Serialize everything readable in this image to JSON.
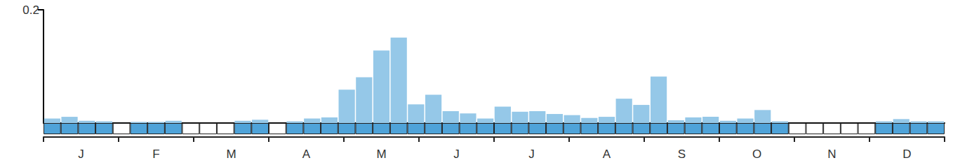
{
  "chart_data": {
    "type": "bar",
    "categories": [
      null,
      null,
      null,
      null,
      null,
      null,
      null,
      null,
      null,
      null,
      null,
      null,
      null,
      null,
      null,
      null,
      null,
      null,
      null,
      null,
      null,
      null,
      null,
      null,
      null,
      null,
      null,
      null,
      null,
      null,
      null,
      null,
      null,
      null,
      null,
      null,
      null,
      null,
      null,
      null,
      null,
      null,
      null,
      null,
      null,
      null,
      null,
      null,
      null,
      null,
      null,
      null
    ],
    "values": [
      0.008,
      0.011,
      0.004,
      0.003,
      0,
      0.002,
      0.002,
      0.004,
      0,
      0,
      0,
      0.004,
      0.006,
      0,
      0.003,
      0.008,
      0.01,
      0.059,
      0.081,
      0.128,
      0.151,
      0.033,
      0.05,
      0.021,
      0.017,
      0.008,
      0.029,
      0.02,
      0.021,
      0.016,
      0.014,
      0.009,
      0.011,
      0.043,
      0.032,
      0.082,
      0.005,
      0.01,
      0.011,
      0.004,
      0.008,
      0.023,
      0.003,
      0,
      0,
      0,
      0,
      0,
      0.003,
      0.007,
      0.003,
      0.003
    ],
    "present": [
      1,
      1,
      1,
      1,
      0,
      1,
      1,
      1,
      0,
      0,
      0,
      1,
      1,
      0,
      1,
      1,
      1,
      1,
      1,
      1,
      1,
      1,
      1,
      1,
      1,
      1,
      1,
      1,
      1,
      1,
      1,
      1,
      1,
      1,
      1,
      1,
      1,
      1,
      1,
      1,
      1,
      1,
      1,
      0,
      0,
      0,
      0,
      0,
      1,
      1,
      1,
      1
    ],
    "months": [
      "J",
      "F",
      "M",
      "A",
      "M",
      "J",
      "J",
      "A",
      "S",
      "O",
      "N",
      "D"
    ],
    "color": "#95c8e8",
    "present_color": "#4fa3d9",
    "ylim": [
      0,
      0.2
    ],
    "yticks": [
      0.2
    ]
  }
}
